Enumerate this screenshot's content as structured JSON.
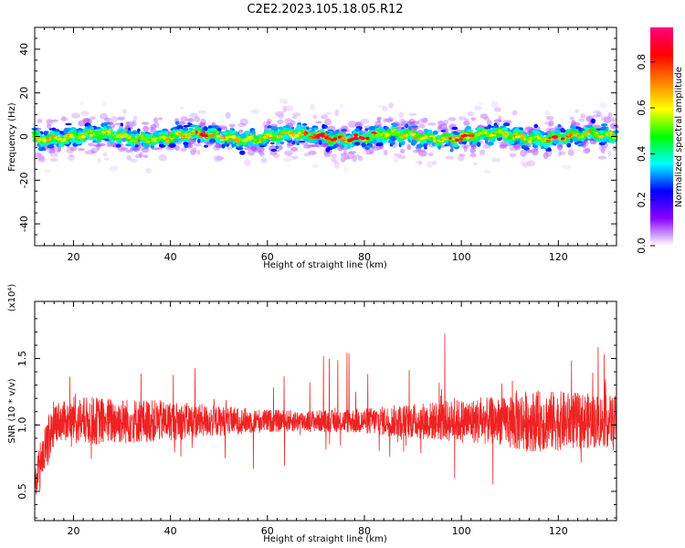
{
  "figure": {
    "title": "C2E2.2023.105.18.05.R12"
  },
  "chart_data": [
    {
      "type": "heatmap",
      "title": "",
      "xlabel": "Height of straight line (km)",
      "ylabel": "Frequency (Hz)",
      "xlim": [
        12,
        132
      ],
      "ylim": [
        -50,
        50
      ],
      "x_ticks": [
        20,
        40,
        60,
        80,
        100,
        120
      ],
      "y_ticks": [
        -40,
        -20,
        0,
        20,
        40
      ],
      "grid": false,
      "colorbar": {
        "label": "Normalized spectral amplitude",
        "range": [
          0,
          0.95
        ],
        "ticks": [
          "0.0",
          "0.2",
          "0.4",
          "0.6",
          "0.8"
        ],
        "colormap": [
          "#ffffff",
          "#8a00ff",
          "#0000ff",
          "#00ffff",
          "#00ff00",
          "#ffff00",
          "#ff8000",
          "#ff0000",
          "#ff0080"
        ]
      },
      "band_center_hz": 0,
      "band_halfwidth_hz": 6,
      "peak_regions_km": [
        47,
        70,
        73,
        77,
        80,
        100,
        120
      ]
    },
    {
      "type": "line",
      "title": "",
      "xlabel": "Height of straight line (km)",
      "ylabel": "SNR (10 * v/v)",
      "y_multiplier": "(x10⁴)",
      "xlim": [
        12,
        132
      ],
      "ylim": [
        0.28,
        1.93
      ],
      "x_ticks": [
        20,
        40,
        60,
        80,
        100,
        120
      ],
      "y_ticks": [
        0.5,
        1.0,
        1.5
      ],
      "series_color": "#ee2222",
      "grid": false
    }
  ]
}
